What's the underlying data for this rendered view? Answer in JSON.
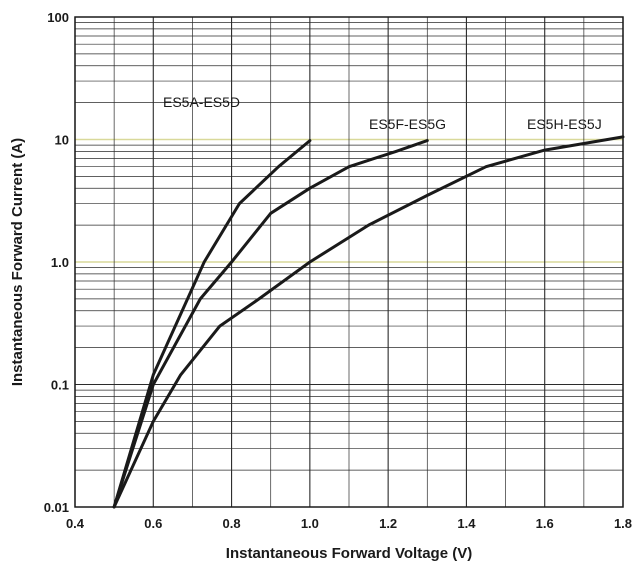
{
  "chart_data": {
    "type": "line",
    "xlabel": "Instantaneous Forward Voltage (V)",
    "ylabel": "Instantaneous Forward Current (A)",
    "xlim": [
      0.4,
      1.8
    ],
    "ylim": [
      0.01,
      100
    ],
    "yscale": "log",
    "grid": true,
    "x_ticks": [
      "0.4",
      "0.6",
      "0.8",
      "1.0",
      "1.2",
      "1.4",
      "1.6",
      "1.8"
    ],
    "y_ticks": [
      "0.01",
      "0.1",
      "1.0",
      "10",
      "100"
    ],
    "series": [
      {
        "name": "ES5A-ES5D",
        "points": [
          [
            0.5,
            0.01
          ],
          [
            0.6,
            0.12
          ],
          [
            0.73,
            1.0
          ],
          [
            0.82,
            3.0
          ],
          [
            0.92,
            6.0
          ],
          [
            1.0,
            9.8
          ]
        ]
      },
      {
        "name": "ES5F-ES5G",
        "points": [
          [
            0.5,
            0.01
          ],
          [
            0.6,
            0.1
          ],
          [
            0.72,
            0.5
          ],
          [
            0.8,
            1.0
          ],
          [
            0.9,
            2.5
          ],
          [
            1.0,
            4.0
          ],
          [
            1.1,
            6.0
          ],
          [
            1.22,
            8.0
          ],
          [
            1.3,
            9.8
          ]
        ]
      },
      {
        "name": "ES5H-ES5J",
        "points": [
          [
            0.5,
            0.01
          ],
          [
            0.6,
            0.05
          ],
          [
            0.67,
            0.12
          ],
          [
            0.77,
            0.3
          ],
          [
            0.87,
            0.5
          ],
          [
            1.0,
            1.0
          ],
          [
            1.15,
            2.0
          ],
          [
            1.3,
            3.5
          ],
          [
            1.45,
            6.0
          ],
          [
            1.6,
            8.2
          ],
          [
            1.8,
            10.5
          ]
        ]
      }
    ],
    "colors": {
      "line": "#1a1a1a",
      "grid": "#2b2b2b",
      "highlight": "#d9d99a"
    }
  }
}
